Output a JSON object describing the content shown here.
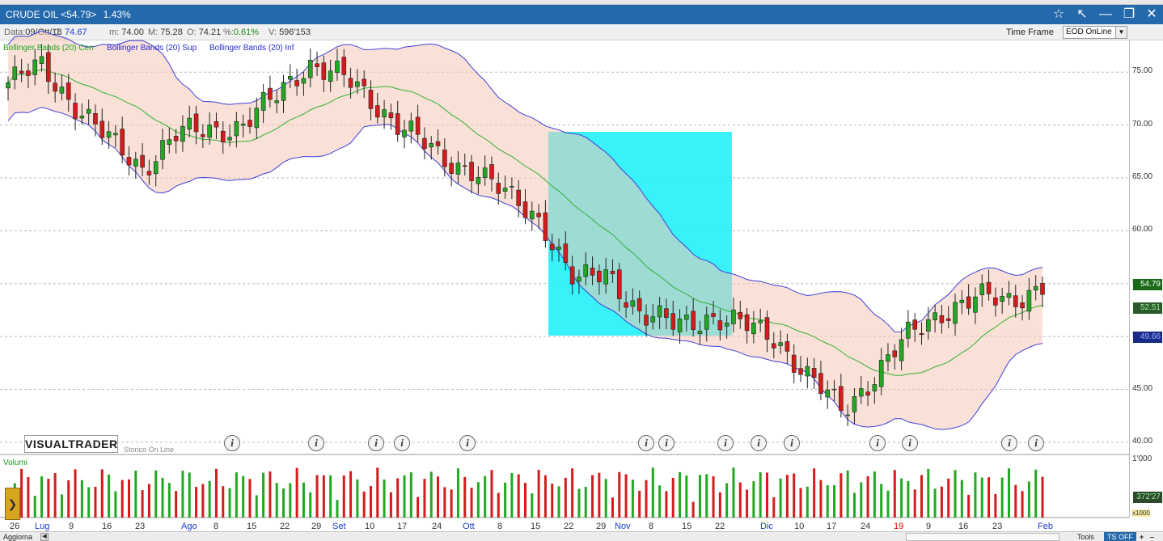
{
  "window": {
    "title_symbol": "CRUDE OIL <54.79>",
    "title_change": "1.43%",
    "controls": [
      "☆",
      "↖",
      "—",
      "❐",
      "✕"
    ]
  },
  "quote": {
    "date_label": "Data:",
    "date_value": "09/Ott/18",
    "close_label": "C:",
    "close_value": "74.67",
    "min_label": "m:",
    "min_value": "74.00",
    "max_label": "M:",
    "max_value": "75.28",
    "open_label": "O:",
    "open_value": "74.21",
    "pct_label": "%:",
    "pct_value": "0.61%",
    "vol_label": "V:",
    "vol_value": "596'153"
  },
  "timeframe": {
    "label": "Time Frame",
    "value": "EOD OnLine"
  },
  "legend": {
    "center": "Bollinger Bands (20) Cen",
    "upper": "Bollinger Bands (20) Sup",
    "lower": "Bollinger Bands (20) Inf"
  },
  "brand": "VISUALTRADER",
  "storico": "Storico On Line",
  "volume_label": "Volumi",
  "price_axis": {
    "ticks": [
      "75.00",
      "70.00",
      "65.00",
      "60.00",
      "55.00",
      "50.00",
      "45.00",
      "40.00"
    ],
    "last_price": "54.79",
    "band_center": "52.51",
    "band_lower": "49.66"
  },
  "volume_axis": {
    "top": "1'000",
    "current": "372'27",
    "unit": "x1000"
  },
  "x_axis": [
    {
      "t": "26",
      "s": ""
    },
    {
      "t": "Lug",
      "s": "blue"
    },
    {
      "t": "9",
      "s": ""
    },
    {
      "t": "16",
      "s": ""
    },
    {
      "t": "23",
      "s": ""
    },
    {
      "t": "Ago",
      "s": "blue"
    },
    {
      "t": "8",
      "s": ""
    },
    {
      "t": "15",
      "s": ""
    },
    {
      "t": "22",
      "s": ""
    },
    {
      "t": "29",
      "s": ""
    },
    {
      "t": "Set",
      "s": "blue"
    },
    {
      "t": "10",
      "s": ""
    },
    {
      "t": "17",
      "s": ""
    },
    {
      "t": "24",
      "s": ""
    },
    {
      "t": "Ott",
      "s": "blue"
    },
    {
      "t": "8",
      "s": ""
    },
    {
      "t": "15",
      "s": ""
    },
    {
      "t": "22",
      "s": ""
    },
    {
      "t": "29",
      "s": ""
    },
    {
      "t": "Nov",
      "s": "blue"
    },
    {
      "t": "8",
      "s": ""
    },
    {
      "t": "15",
      "s": ""
    },
    {
      "t": "22",
      "s": ""
    },
    {
      "t": "Dic",
      "s": "blue"
    },
    {
      "t": "10",
      "s": ""
    },
    {
      "t": "17",
      "s": ""
    },
    {
      "t": "24",
      "s": ""
    },
    {
      "t": "19",
      "s": "red"
    },
    {
      "t": "9",
      "s": ""
    },
    {
      "t": "16",
      "s": ""
    },
    {
      "t": "23",
      "s": ""
    },
    {
      "t": "Feb",
      "s": "blue"
    }
  ],
  "statusbar": {
    "refresh": "Aggiorna",
    "tools": "Tools",
    "ts": "TS OFF",
    "plus": "+",
    "minus": "–"
  },
  "colors": {
    "up": "#22a822",
    "down": "#d41c1c",
    "band_line": "#4040d8",
    "center_line": "#30b030",
    "highlight": "#22f0f8"
  },
  "chart_data": {
    "type": "candlestick",
    "title": "CRUDE OIL",
    "ylim": [
      39,
      78
    ],
    "key_prices": [
      74.0,
      75.5,
      72.0,
      68.5,
      66.0,
      69.0,
      69.5,
      70.0,
      72.5,
      76.0,
      74.5,
      72.0,
      69.5,
      66.5,
      66.0,
      63.0,
      61.0,
      55.0,
      56.0,
      52.0,
      51.0,
      52.0,
      51.0,
      50.0,
      46.0,
      43.0,
      46.5,
      50.0,
      52.5,
      53.5,
      53.5,
      54.79
    ]
  }
}
